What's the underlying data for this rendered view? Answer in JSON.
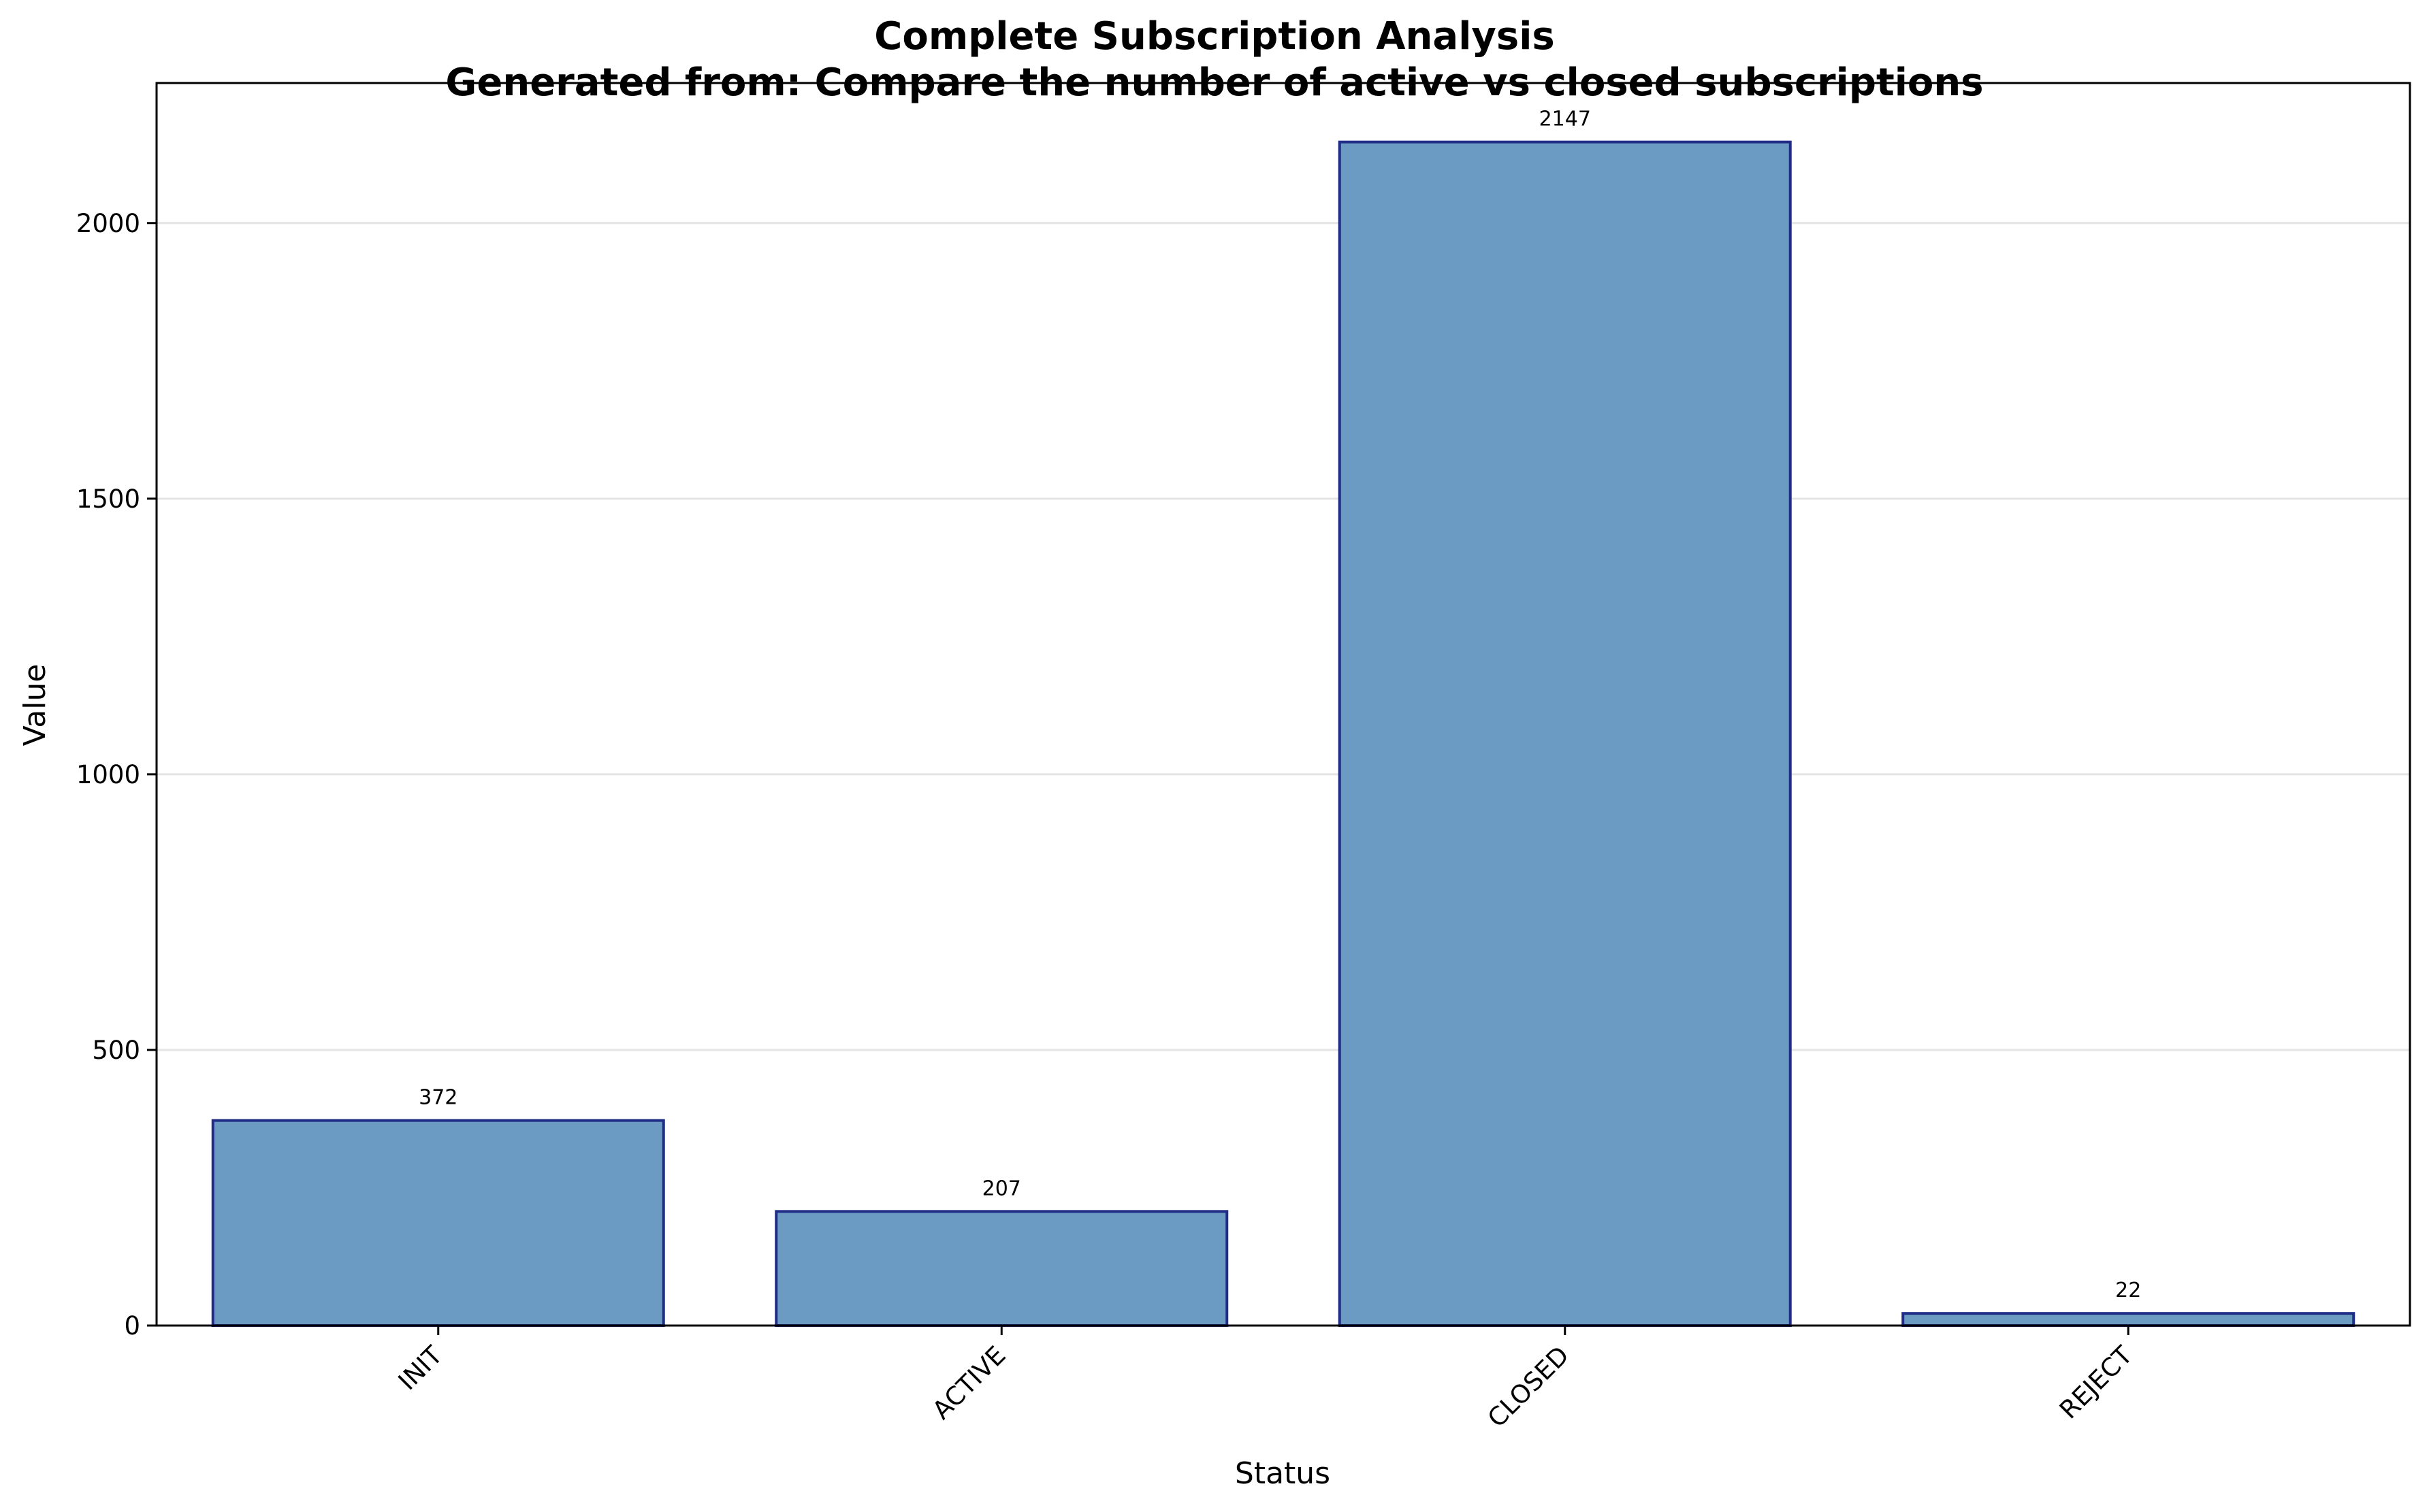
{
  "chart_data": {
    "type": "bar",
    "title": "Complete Subscription Analysis",
    "subtitle": "Generated from: Compare the number of active vs closed subscriptions",
    "xlabel": "Status",
    "ylabel": "Value",
    "categories": [
      "INIT",
      "ACTIVE",
      "CLOSED",
      "REJECT"
    ],
    "values": [
      372,
      207,
      2147,
      22
    ],
    "data_labels": [
      "372",
      "207",
      "2147",
      "22"
    ],
    "yticks": [
      0,
      500,
      1000,
      1500,
      2000
    ],
    "ylim": [
      0,
      2254
    ],
    "grid": "y",
    "legend": "none",
    "colors": {
      "bar_fill": "#6b9bc3",
      "bar_edge": "#1f2d86",
      "grid": "#e4e4e4",
      "axis": "#000000"
    }
  }
}
